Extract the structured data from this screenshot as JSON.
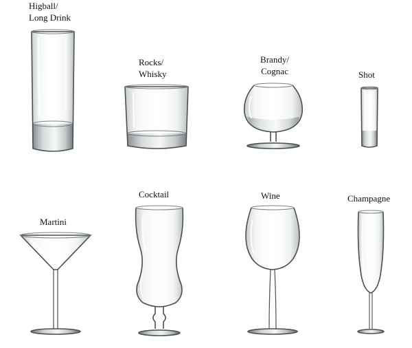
{
  "background": "#ffffff",
  "glasses": [
    {
      "icon": "highball-glass-icon",
      "label_lines": [
        "Higball/",
        "Long Drink"
      ]
    },
    {
      "icon": "rocks-glass-icon",
      "label_lines": [
        "Rocks/",
        "Whisky"
      ]
    },
    {
      "icon": "brandy-glass-icon",
      "label_lines": [
        "Brandy/",
        "Cognac"
      ]
    },
    {
      "icon": "shot-glass-icon",
      "label_lines": [
        "Shot"
      ]
    },
    {
      "icon": "martini-glass-icon",
      "label_lines": [
        "Martini"
      ]
    },
    {
      "icon": "cocktail-glass-icon",
      "label_lines": [
        "Cocktail"
      ]
    },
    {
      "icon": "wine-glass-icon",
      "label_lines": [
        "Wine"
      ]
    },
    {
      "icon": "champagne-glass-icon",
      "label_lines": [
        "Champagne"
      ]
    }
  ]
}
